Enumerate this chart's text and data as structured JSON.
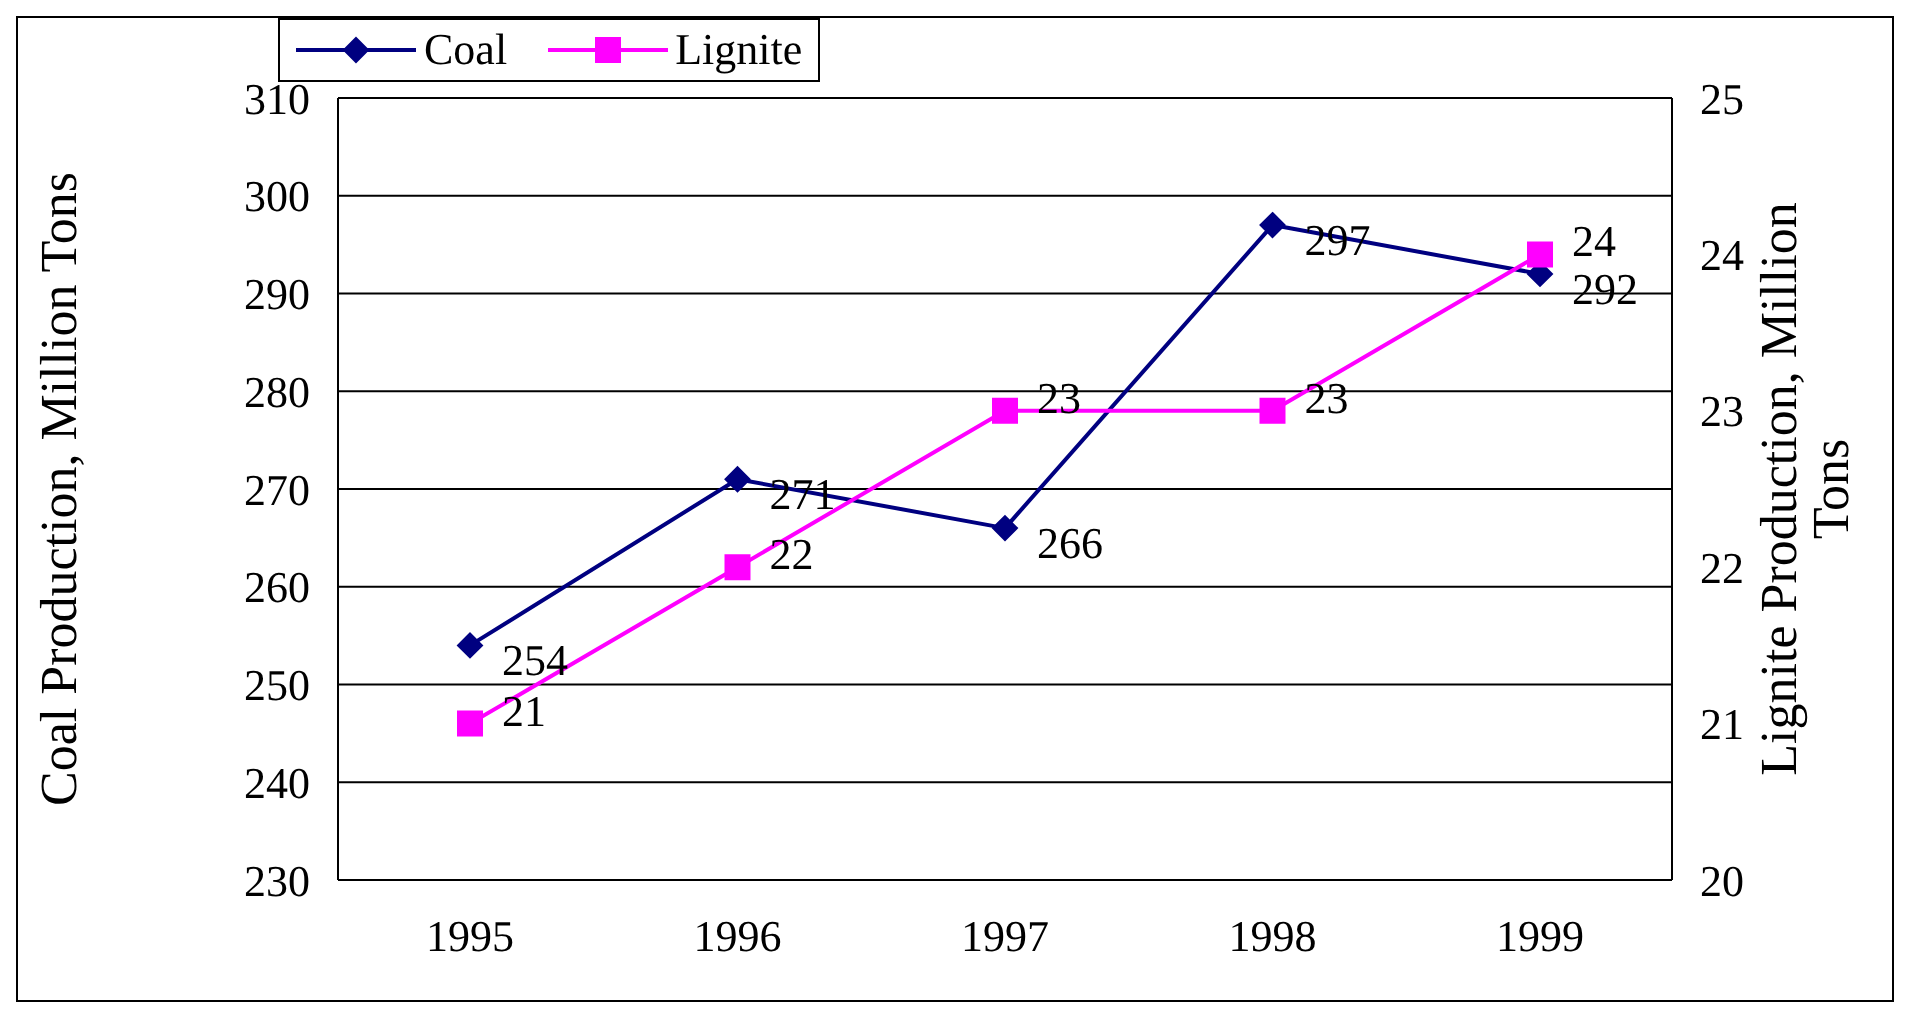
{
  "chart_data": {
    "type": "line",
    "categories": [
      "1995",
      "1996",
      "1997",
      "1998",
      "1999"
    ],
    "series": [
      {
        "name": "Coal",
        "color": "#000080",
        "values": [
          254,
          271,
          266,
          297,
          292
        ],
        "marker": "diamond"
      },
      {
        "name": "Lignite",
        "color": "#ff00ff",
        "values": [
          21,
          22,
          23,
          23,
          24
        ],
        "marker": "square",
        "axis": "y2"
      }
    ],
    "ylabel": "Coal Production, Million Tons",
    "y2label": "Lignite Production, Million Tons",
    "ylim": [
      230,
      310
    ],
    "yticks": [
      230,
      240,
      250,
      260,
      270,
      280,
      290,
      300,
      310
    ],
    "y2lim": [
      20,
      25
    ],
    "y2ticks": [
      20,
      21,
      22,
      23,
      24,
      25
    ],
    "grid": "y",
    "legend": "top",
    "data_labels": true,
    "line_style": "solid"
  }
}
